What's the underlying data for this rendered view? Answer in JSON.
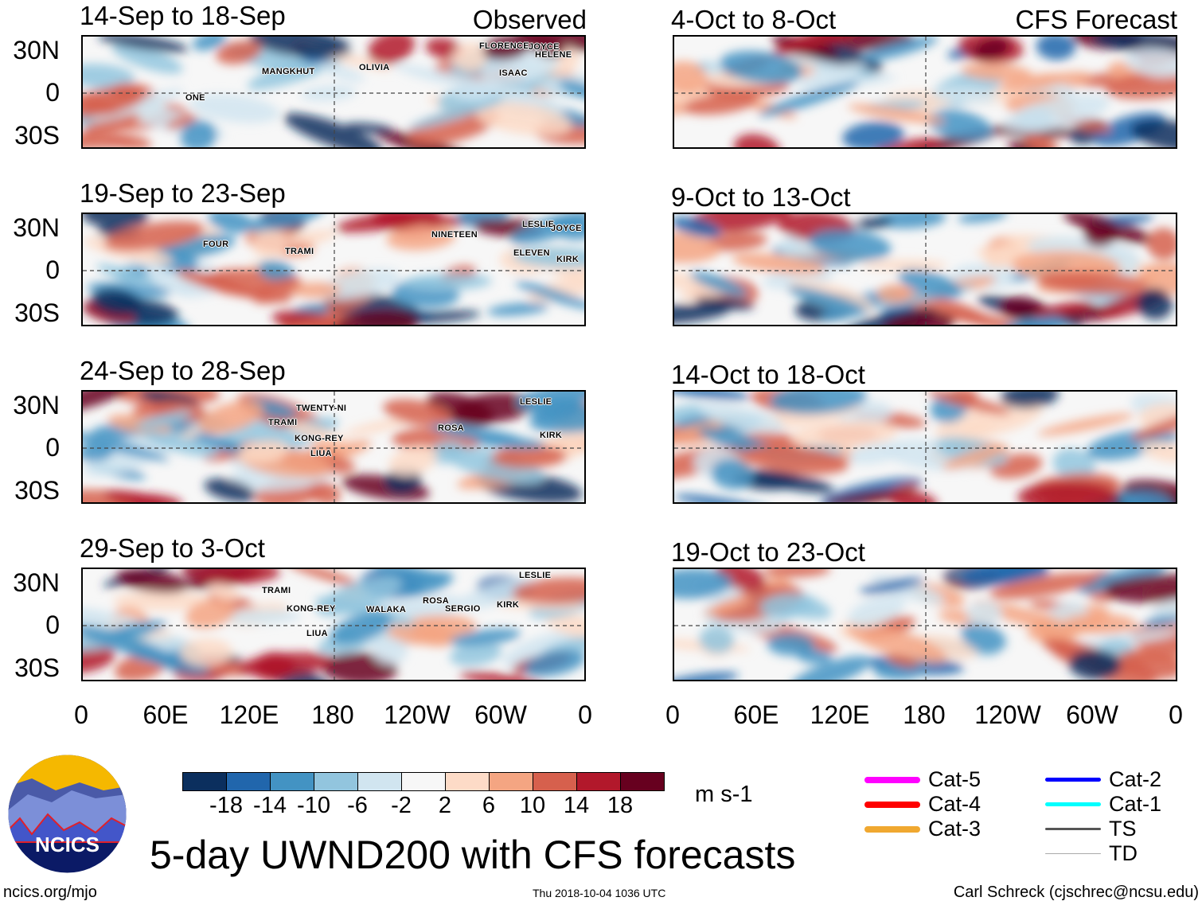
{
  "lat_labels": [
    "30N",
    "0",
    "30S"
  ],
  "lon_labels": [
    "0",
    "60E",
    "120E",
    "180",
    "120W",
    "60W",
    "0"
  ],
  "panels": [
    {
      "title": "14-Sep to 18-Sep",
      "corner": "Observed",
      "storms": [
        "MANGKHUT",
        "OLIVIA",
        "FLORENCE",
        "JOYCE",
        "HELENE",
        "ISAAC",
        "ONE"
      ]
    },
    {
      "title": "19-Sep to 23-Sep",
      "corner": "",
      "storms": [
        "FOUR",
        "TRAMI",
        "NINETEEN",
        "LESLIE",
        "JOYCE",
        "ELEVEN",
        "KIRK"
      ]
    },
    {
      "title": "24-Sep to 28-Sep",
      "corner": "",
      "storms": [
        "TWENTY-NI",
        "TRAMI",
        "KONG-REY",
        "LIUA",
        "ROSA",
        "LESLIE",
        "KIRK"
      ]
    },
    {
      "title": "29-Sep to 3-Oct",
      "corner": "",
      "storms": [
        "TRAMI",
        "KONG-REY",
        "LIUA",
        "WALAKA",
        "ROSA",
        "SERGIO",
        "KIRK",
        "LESLIE"
      ]
    },
    {
      "title": "4-Oct to 8-Oct",
      "corner": "CFS Forecast",
      "storms": []
    },
    {
      "title": "9-Oct to 13-Oct",
      "corner": "",
      "storms": []
    },
    {
      "title": "14-Oct to 18-Oct",
      "corner": "",
      "storms": []
    },
    {
      "title": "19-Oct to 23-Oct",
      "corner": "",
      "storms": []
    }
  ],
  "colorbar": {
    "colors": [
      "#0b2f5e",
      "#2166ac",
      "#4393c3",
      "#92c5de",
      "#d1e5f0",
      "#f7f7f7",
      "#fddbc7",
      "#f4a582",
      "#d6604d",
      "#b2182b",
      "#67001f"
    ],
    "labels": [
      "-18",
      "-14",
      "-10",
      "-6",
      "-2",
      "2",
      "6",
      "10",
      "14",
      "18"
    ],
    "units": "m s-1"
  },
  "legend": [
    {
      "label": "Cat-5",
      "color": "#ff00ff"
    },
    {
      "label": "Cat-4",
      "color": "#ff0000"
    },
    {
      "label": "Cat-3",
      "color": "#f0a830"
    },
    {
      "label": "Cat-2",
      "color": "#0000ff"
    },
    {
      "label": "Cat-1",
      "color": "#00ffff"
    },
    {
      "label": "TS",
      "color": "#555555"
    },
    {
      "label": "TD",
      "color": "#aaaaaa"
    }
  ],
  "title": "5-day UWND200 with CFS forecasts",
  "logo_text": "NCICS",
  "footer": {
    "left": "ncics.org/mjo",
    "center": "Thu 2018-10-04 1036 UTC",
    "right": "Carl Schreck (cjschrec@ncsu.edu)"
  }
}
